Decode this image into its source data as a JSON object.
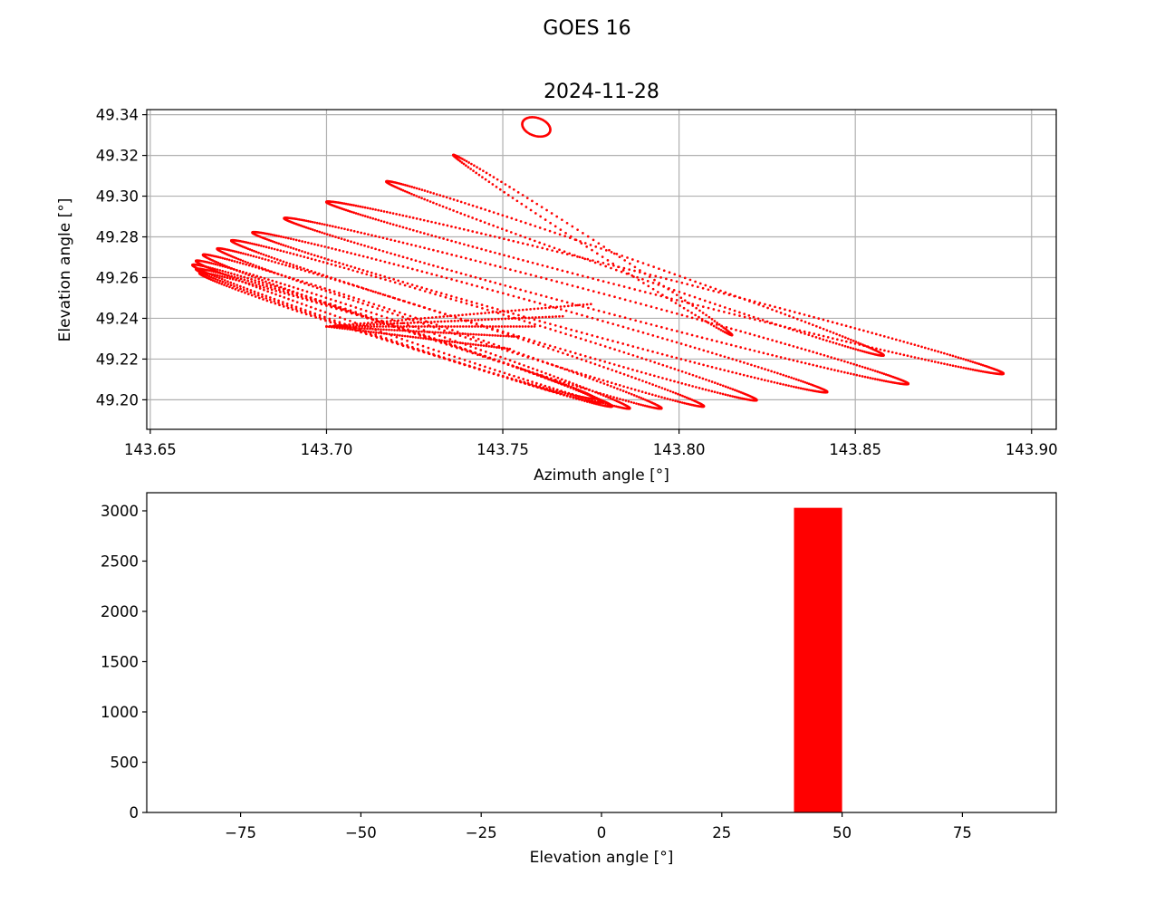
{
  "figure": {
    "suptitle": "GOES 16"
  },
  "colors": {
    "series": "#ff0000",
    "grid": "#b0b0b0",
    "axes": "#000000"
  },
  "chart_data": [
    {
      "type": "scatter",
      "title": "2024-11-28",
      "xlabel": "Azimuth angle [°]",
      "ylabel": "Elevation angle [°]",
      "xlim": [
        143.649,
        143.907
      ],
      "ylim": [
        49.1855,
        49.3425
      ],
      "xticks": [
        143.65,
        143.7,
        143.75,
        143.8,
        143.85,
        143.9
      ],
      "xtick_labels": [
        "143.65",
        "143.70",
        "143.75",
        "143.80",
        "143.85",
        "143.90"
      ],
      "yticks": [
        49.2,
        49.22,
        49.24,
        49.26,
        49.28,
        49.3,
        49.32,
        49.34
      ],
      "ytick_labels": [
        "49.20",
        "49.22",
        "49.24",
        "49.26",
        "49.28",
        "49.30",
        "49.32",
        "49.34"
      ],
      "grid": true,
      "marker": "dot",
      "loops": [
        {
          "max_az": 143.776,
          "min_el": 49.201,
          "left_az": 143.664,
          "top_el": 49.262
        },
        {
          "max_az": 143.778,
          "min_el": 49.199,
          "left_az": 143.663,
          "top_el": 49.264
        },
        {
          "max_az": 143.781,
          "min_el": 49.197,
          "left_az": 143.662,
          "top_el": 49.266
        },
        {
          "max_az": 143.786,
          "min_el": 49.196,
          "left_az": 143.663,
          "top_el": 49.268
        },
        {
          "max_az": 143.795,
          "min_el": 49.196,
          "left_az": 143.665,
          "top_el": 49.271
        },
        {
          "max_az": 143.807,
          "min_el": 49.197,
          "left_az": 143.669,
          "top_el": 49.274
        },
        {
          "max_az": 143.822,
          "min_el": 49.2,
          "left_az": 143.673,
          "top_el": 49.278
        },
        {
          "max_az": 143.842,
          "min_el": 49.204,
          "left_az": 143.679,
          "top_el": 49.282
        },
        {
          "max_az": 143.865,
          "min_el": 49.208,
          "left_az": 143.688,
          "top_el": 49.289
        },
        {
          "max_az": 143.892,
          "min_el": 49.213,
          "left_az": 143.7,
          "top_el": 49.297
        },
        {
          "max_az": 143.858,
          "min_el": 49.222,
          "left_az": 143.717,
          "top_el": 49.307
        },
        {
          "max_az": 143.815,
          "min_el": 49.232,
          "left_az": 143.736,
          "top_el": 49.32
        },
        {
          "max_az": 143.763,
          "min_el": 49.335,
          "left_az": 143.756,
          "top_el": 49.333
        }
      ],
      "streaks": [
        {
          "from_az": 143.7,
          "from_el": 49.236,
          "to_az": 143.775,
          "to_el": 49.247
        },
        {
          "from_az": 143.7,
          "from_el": 49.236,
          "to_az": 143.767,
          "to_el": 49.241
        },
        {
          "from_az": 143.7,
          "from_el": 49.236,
          "to_az": 143.759,
          "to_el": 49.236
        },
        {
          "from_az": 143.7,
          "from_el": 49.236,
          "to_az": 143.754,
          "to_el": 49.231
        },
        {
          "from_az": 143.7,
          "from_el": 49.236,
          "to_az": 143.752,
          "to_el": 49.225
        }
      ]
    },
    {
      "type": "bar",
      "xlabel": "Elevation angle [°]",
      "ylabel": "",
      "xlim": [
        -94.5,
        94.5
      ],
      "ylim": [
        0,
        3180
      ],
      "xticks": [
        -75,
        -50,
        -25,
        0,
        25,
        50,
        75
      ],
      "xtick_labels": [
        "−75",
        "−50",
        "−25",
        "0",
        "25",
        "50",
        "75"
      ],
      "yticks": [
        0,
        500,
        1000,
        1500,
        2000,
        2500,
        3000
      ],
      "ytick_labels": [
        "0",
        "500",
        "1000",
        "1500",
        "2000",
        "2500",
        "3000"
      ],
      "grid": false,
      "bins": [
        {
          "from": 40,
          "to": 50,
          "count": 3030
        }
      ]
    }
  ]
}
